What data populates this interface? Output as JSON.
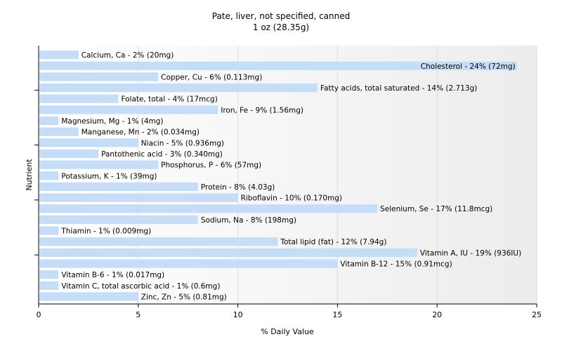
{
  "chart_data": {
    "type": "bar",
    "orientation": "horizontal",
    "title": "Pate, liver, not specified, canned",
    "subtitle": "1 oz (28.35g)",
    "xlabel": "% Daily Value",
    "ylabel": "Nutrient",
    "xlim": [
      0,
      25
    ],
    "xticks": [
      0,
      5,
      10,
      15,
      20,
      25
    ],
    "bar_color": "#c6ddf8",
    "categories": [
      "Calcium, Ca",
      "Cholesterol",
      "Copper, Cu",
      "Fatty acids, total saturated",
      "Folate, total",
      "Iron, Fe",
      "Magnesium, Mg",
      "Manganese, Mn",
      "Niacin",
      "Pantothenic acid",
      "Phosphorus, P",
      "Potassium, K",
      "Protein",
      "Riboflavin",
      "Selenium, Se",
      "Sodium, Na",
      "Thiamin",
      "Total lipid (fat)",
      "Vitamin A, IU",
      "Vitamin B-12",
      "Vitamin B-6",
      "Vitamin C, total ascorbic acid",
      "Zinc, Zn"
    ],
    "values": [
      2,
      24,
      6,
      14,
      4,
      9,
      1,
      2,
      5,
      3,
      6,
      1,
      8,
      10,
      17,
      8,
      1,
      12,
      19,
      15,
      1,
      1,
      5
    ],
    "labels": [
      "Calcium, Ca - 2% (20mg)",
      "Cholesterol - 24% (72mg)",
      "Copper, Cu - 6% (0.113mg)",
      "Fatty acids, total saturated - 14% (2.713g)",
      "Folate, total - 4% (17mcg)",
      "Iron, Fe - 9% (1.56mg)",
      "Magnesium, Mg - 1% (4mg)",
      "Manganese, Mn - 2% (0.034mg)",
      "Niacin - 5% (0.936mg)",
      "Pantothenic acid - 3% (0.340mg)",
      "Phosphorus, P - 6% (57mg)",
      "Potassium, K - 1% (39mg)",
      "Protein - 8% (4.03g)",
      "Riboflavin - 10% (0.170mg)",
      "Selenium, Se - 17% (11.8mcg)",
      "Sodium, Na - 8% (198mg)",
      "Thiamin - 1% (0.009mg)",
      "Total lipid (fat) - 12% (7.94g)",
      "Vitamin A, IU - 19% (936IU)",
      "Vitamin B-12 - 15% (0.91mcg)",
      "Vitamin B-6 - 1% (0.017mg)",
      "Vitamin C, total ascorbic acid - 1% (0.6mg)",
      "Zinc, Zn - 5% (0.81mg)"
    ]
  }
}
